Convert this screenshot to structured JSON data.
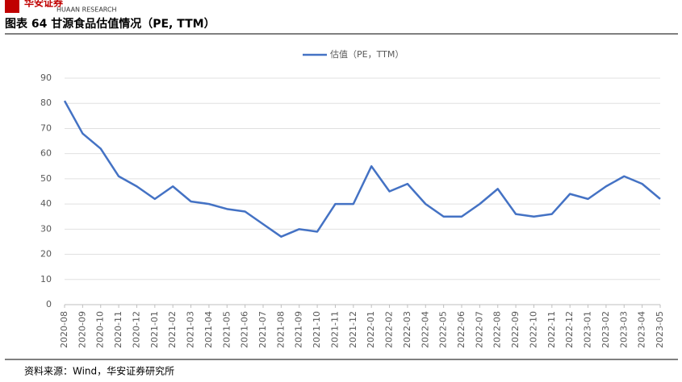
{
  "header": {
    "brand": "华安证券",
    "brand_en": "HUAAN RESEARCH"
  },
  "source": "资料来源：Wind，华安证券研究所",
  "chart_data": {
    "type": "line",
    "title": "图表 64 甘源食品估值情况（PE, TTM）",
    "categories": [
      "2020-08",
      "2020-09",
      "2020-10",
      "2020-11",
      "2020-12",
      "2021-01",
      "2021-02",
      "2021-03",
      "2021-04",
      "2021-05",
      "2021-06",
      "2021-07",
      "2021-08",
      "2021-09",
      "2021-10",
      "2021-11",
      "2021-12",
      "2022-01",
      "2022-02",
      "2022-03",
      "2022-04",
      "2022-05",
      "2022-06",
      "2022-07",
      "2022-08",
      "2022-09",
      "2022-10",
      "2022-11",
      "2022-12",
      "2023-01",
      "2023-02",
      "2023-03",
      "2023-04",
      "2023-05"
    ],
    "series": [
      {
        "name": "估值（PE，TTM）",
        "color": "#4472c4",
        "values": [
          81,
          68,
          62,
          51,
          47,
          42,
          47,
          41,
          40,
          38,
          37,
          32,
          27,
          30,
          29,
          40,
          40,
          55,
          45,
          48,
          40,
          35,
          35,
          40,
          46,
          36,
          35,
          36,
          44,
          42,
          47,
          51,
          48,
          42
        ]
      }
    ],
    "ylim": [
      0,
      90
    ],
    "yticks": [
      0,
      10,
      20,
      30,
      40,
      50,
      60,
      70,
      80,
      90
    ],
    "grid": true,
    "legend": "top"
  }
}
